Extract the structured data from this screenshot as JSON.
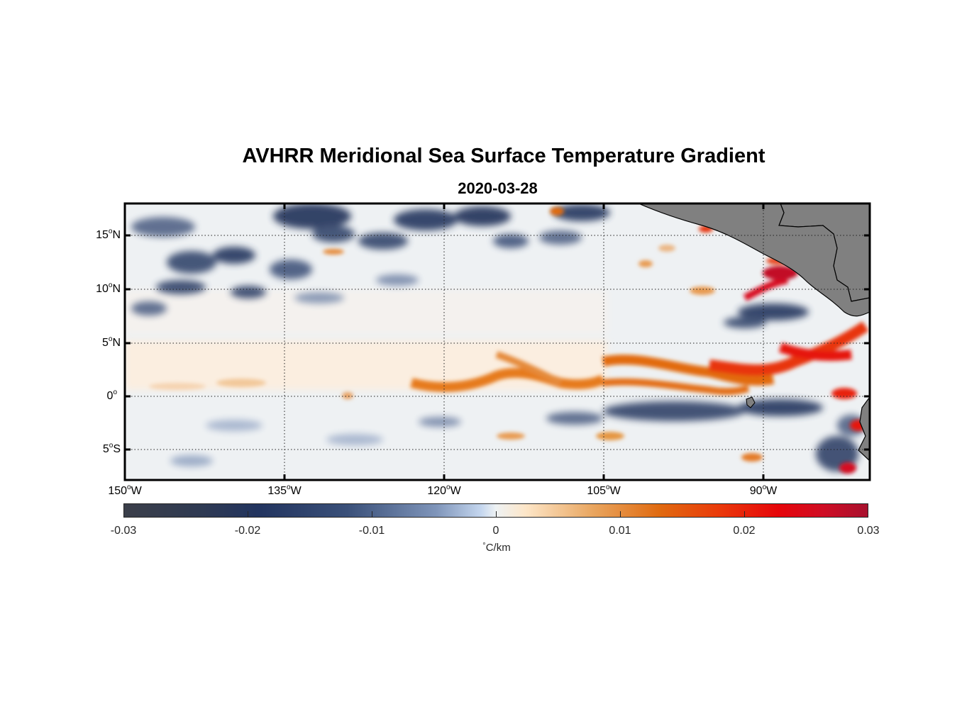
{
  "title": "AVHRR Meridional Sea Surface Temperature Gradient",
  "subtitle": "2020-03-28",
  "map": {
    "lon_range": [
      -150,
      -80
    ],
    "lat_range": [
      -8,
      18
    ],
    "lat_ticks": [
      {
        "deg": "15",
        "hemi": "N"
      },
      {
        "deg": "10",
        "hemi": "N"
      },
      {
        "deg": "5",
        "hemi": "N"
      },
      {
        "deg": "0",
        "hemi": ""
      },
      {
        "deg": "5",
        "hemi": "S"
      }
    ],
    "lon_ticks": [
      {
        "deg": "150",
        "hemi": "W"
      },
      {
        "deg": "135",
        "hemi": "W"
      },
      {
        "deg": "120",
        "hemi": "W"
      },
      {
        "deg": "105",
        "hemi": "W"
      },
      {
        "deg": "90",
        "hemi": "W"
      }
    ],
    "grid": true,
    "land_color": "#808080"
  },
  "colorbar": {
    "ticks": [
      "-0.03",
      "-0.02",
      "-0.01",
      "0",
      "0.01",
      "0.02",
      "0.03"
    ],
    "range": [
      -0.03,
      0.03
    ],
    "unit_symbol": "°",
    "unit": "C/km",
    "colors": [
      "#3b3f4a",
      "#22345f",
      "#7f95ba",
      "#eef2f4",
      "#e9a660",
      "#e06a10",
      "#e6050a",
      "#a8112e"
    ]
  }
}
